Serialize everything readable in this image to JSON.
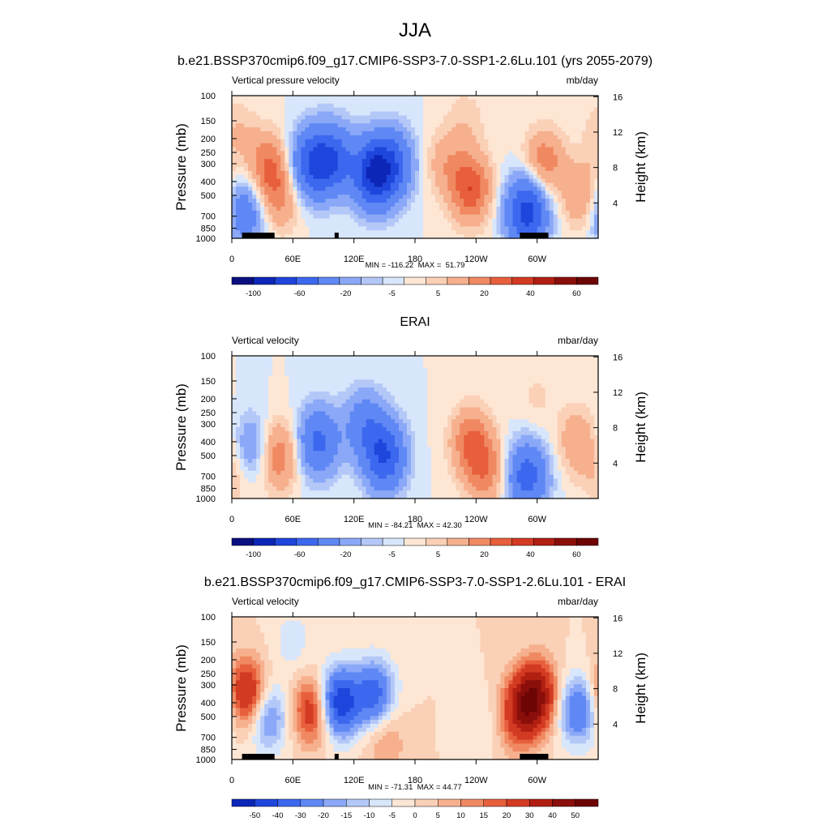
{
  "figure": {
    "title": "JJA",
    "colors": {
      "scale": [
        "#0a0f80",
        "#0c26b8",
        "#1f46dc",
        "#3c68ef",
        "#5f88f5",
        "#8aa8f7",
        "#b4c8f8",
        "#d8e6fb",
        "#fde6d4",
        "#fad0b6",
        "#f6b08e",
        "#f08962",
        "#e75f3c",
        "#d23a22",
        "#b11f12",
        "#8a0f0b",
        "#6d0504"
      ],
      "land": "#000000",
      "frame": "#000000"
    }
  },
  "chart_data": [
    {
      "type": "heatmap",
      "title": "b.e21.BSSP370cmip6.f09_g17.CMIP6-SSP3-7.0-SSP1-2.6Lu.101 (yrs 2055-2079)",
      "left_label": "Vertical pressure velocity",
      "right_label": "mb/day",
      "xlabel": "",
      "ylabel": "Pressure (mb)",
      "y2label": "Height (km)",
      "xlim": [
        0,
        360
      ],
      "x_ticks": [
        "0",
        "60E",
        "120E",
        "180",
        "120W",
        "60W"
      ],
      "y_ticks": [
        "100",
        "150",
        "200",
        "250",
        "300",
        "400",
        "500",
        "700",
        "850",
        "1000"
      ],
      "y2_ticks": [
        "16",
        "12",
        "8",
        "4"
      ],
      "stats": "MIN = -116.22  MAX =  51.79",
      "colorbar_levels": [
        "-100",
        "-60",
        "-20",
        "-5",
        "5",
        "20",
        "40",
        "60"
      ],
      "features": [
        {
          "lon": 12,
          "p": 650,
          "v": -35
        },
        {
          "lon": 35,
          "p": 320,
          "v": 30
        },
        {
          "lon": 48,
          "p": 520,
          "v": 20
        },
        {
          "lon": 78,
          "p": 300,
          "v": -55
        },
        {
          "lon": 100,
          "p": 280,
          "v": -50
        },
        {
          "lon": 140,
          "p": 350,
          "v": -80
        },
        {
          "lon": 160,
          "p": 300,
          "v": -40
        },
        {
          "lon": 235,
          "p": 450,
          "v": 38
        },
        {
          "lon": 210,
          "p": 300,
          "v": 15
        },
        {
          "lon": 290,
          "p": 650,
          "v": -70
        },
        {
          "lon": 307,
          "p": 300,
          "v": 28
        },
        {
          "lon": 345,
          "p": 500,
          "v": 22
        },
        {
          "lon": 5,
          "p": 180,
          "v": 10
        },
        {
          "lon": 230,
          "p": 150,
          "v": 8
        }
      ],
      "land_bars": [
        {
          "start": 10,
          "end": 42
        },
        {
          "start": 101,
          "end": 105
        },
        {
          "start": 283,
          "end": 311
        }
      ],
      "palette": [
        0,
        1,
        2,
        3,
        4,
        5,
        6,
        7,
        8,
        9,
        10,
        11,
        12,
        13,
        14,
        15,
        16
      ],
      "bounds": [
        -130,
        -100,
        -80,
        -60,
        -40,
        -20,
        -10,
        -5,
        0,
        5,
        10,
        20,
        30,
        40,
        50,
        60,
        70,
        80
      ]
    },
    {
      "type": "heatmap",
      "title": "ERAI",
      "left_label": "Vertical velocity",
      "right_label": "mbar/day",
      "xlabel": "",
      "ylabel": "Pressure (mb)",
      "y2label": "Height (km)",
      "xlim": [
        0,
        360
      ],
      "x_ticks": [
        "0",
        "60E",
        "120E",
        "180",
        "120W",
        "60W"
      ],
      "y_ticks": [
        "100",
        "150",
        "200",
        "250",
        "300",
        "400",
        "500",
        "700",
        "850",
        "1000"
      ],
      "y2_ticks": [
        "16",
        "12",
        "8",
        "4"
      ],
      "stats": "MIN = -84.21  MAX = 42.30",
      "colorbar_levels": [
        "-100",
        "-60",
        "-20",
        "-5",
        "5",
        "20",
        "40",
        "60"
      ],
      "features": [
        {
          "lon": 20,
          "p": 450,
          "v": -25
        },
        {
          "lon": 45,
          "p": 500,
          "v": 30
        },
        {
          "lon": 85,
          "p": 400,
          "v": -45
        },
        {
          "lon": 150,
          "p": 500,
          "v": -60
        },
        {
          "lon": 130,
          "p": 300,
          "v": -30
        },
        {
          "lon": 235,
          "p": 400,
          "v": 30
        },
        {
          "lon": 250,
          "p": 650,
          "v": 25
        },
        {
          "lon": 290,
          "p": 700,
          "v": -50
        },
        {
          "lon": 340,
          "p": 400,
          "v": 18
        },
        {
          "lon": 5,
          "p": 650,
          "v": 12
        },
        {
          "lon": 300,
          "p": 200,
          "v": 6
        }
      ],
      "land_bars": [],
      "palette": [
        0,
        1,
        2,
        3,
        4,
        5,
        6,
        7,
        8,
        9,
        10,
        11,
        12,
        13,
        14,
        15,
        16
      ],
      "bounds": [
        -130,
        -100,
        -80,
        -60,
        -40,
        -20,
        -10,
        -5,
        0,
        5,
        10,
        20,
        30,
        40,
        50,
        60,
        70,
        80
      ]
    },
    {
      "type": "heatmap",
      "title": "b.e21.BSSP370cmip6.f09_g17.CMIP6-SSP3-7.0-SSP1-2.6Lu.101 - ERAI",
      "left_label": "Vertical velocity",
      "right_label": "mbar/day",
      "xlabel": "",
      "ylabel": "Pressure (mb)",
      "y2label": "Height (km)",
      "xlim": [
        0,
        360
      ],
      "x_ticks": [
        "0",
        "60E",
        "120E",
        "180",
        "120W",
        "60W"
      ],
      "y_ticks": [
        "100",
        "150",
        "200",
        "250",
        "300",
        "400",
        "500",
        "700",
        "850",
        "1000"
      ],
      "y2_ticks": [
        "16",
        "12",
        "8",
        "4"
      ],
      "stats": "MIN = -71.31  MAX = 44.77",
      "colorbar_levels": [
        "-50",
        "-40",
        "-30",
        "-20",
        "-15",
        "-10",
        "-5",
        "0",
        "5",
        "10",
        "15",
        "20",
        "30",
        "40",
        "50"
      ],
      "features": [
        {
          "lon": 15,
          "p": 350,
          "v": 35
        },
        {
          "lon": 35,
          "p": 500,
          "v": -25
        },
        {
          "lon": 80,
          "p": 450,
          "v": 30
        },
        {
          "lon": 105,
          "p": 400,
          "v": -50
        },
        {
          "lon": 140,
          "p": 350,
          "v": -35
        },
        {
          "lon": 150,
          "p": 700,
          "v": 12
        },
        {
          "lon": 285,
          "p": 450,
          "v": 30
        },
        {
          "lon": 300,
          "p": 350,
          "v": 38
        },
        {
          "lon": 340,
          "p": 450,
          "v": -30
        },
        {
          "lon": 60,
          "p": 150,
          "v": -8
        },
        {
          "lon": 250,
          "p": 600,
          "v": -6
        },
        {
          "lon": 270,
          "p": 650,
          "v": 5
        }
      ],
      "land_bars": [
        {
          "start": 10,
          "end": 42
        },
        {
          "start": 101,
          "end": 105
        },
        {
          "start": 283,
          "end": 311
        }
      ],
      "palette": [
        1,
        2,
        3,
        4,
        5,
        6,
        7,
        8,
        9,
        10,
        11,
        12,
        13,
        14,
        15,
        16
      ],
      "bounds": [
        -100,
        -50,
        -40,
        -30,
        -20,
        -15,
        -10,
        -5,
        0,
        5,
        10,
        15,
        20,
        30,
        40,
        50,
        100
      ]
    }
  ]
}
